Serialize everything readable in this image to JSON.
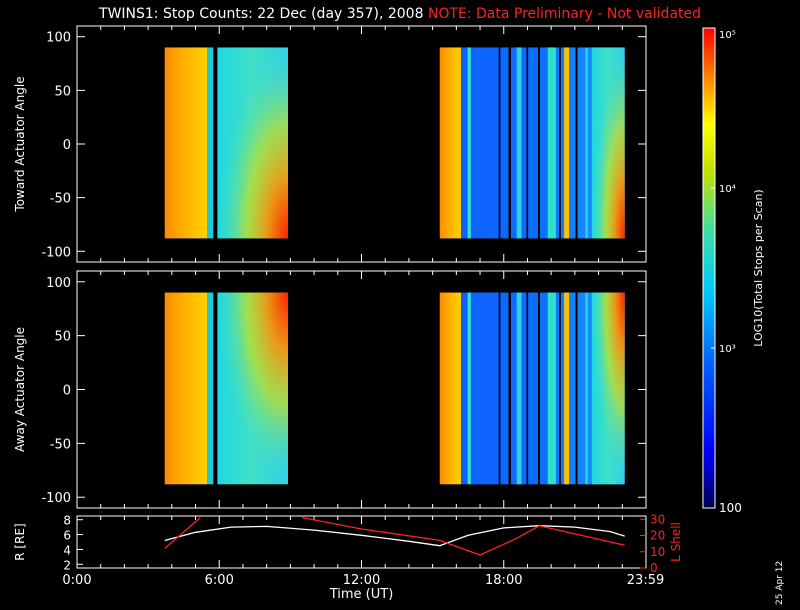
{
  "title": {
    "main": "TWINS1: Stop Counts: 22 Dec (day 357), 2008",
    "note": "NOTE: Data Preliminary - Not validated"
  },
  "footer": {
    "stamp": "25 Apr 12"
  },
  "colors": {
    "note": "#ff2020",
    "frame": "#ffffff",
    "background": "#000000"
  },
  "chart_data": [
    {
      "type": "heatmap",
      "name": "toward",
      "ylabel": "Toward Actuator Angle",
      "ylim": [
        -110,
        110
      ],
      "yticks": [
        100,
        50,
        0,
        -50,
        -100
      ],
      "xlim": [
        0,
        24
      ],
      "angle_range": [
        -88,
        90
      ],
      "data_blocks": [
        {
          "x": [
            3.7,
            8.9
          ],
          "pattern": "orange-cyan",
          "gap_at": 5.5
        },
        {
          "x": [
            15.3,
            16.2
          ],
          "pattern": "orange"
        },
        {
          "x": [
            16.2,
            23.1
          ],
          "pattern": "blue-cyan"
        }
      ]
    },
    {
      "type": "heatmap",
      "name": "away",
      "ylabel": "Away Actuator Angle",
      "ylim": [
        -110,
        110
      ],
      "yticks": [
        100,
        50,
        0,
        -50,
        -100
      ],
      "xlim": [
        0,
        24
      ],
      "angle_range": [
        -88,
        90
      ],
      "data_blocks": [
        {
          "x": [
            3.7,
            8.9
          ],
          "pattern": "orange-cyan",
          "gap_at": 5.5
        },
        {
          "x": [
            15.3,
            16.2
          ],
          "pattern": "orange"
        },
        {
          "x": [
            16.2,
            23.1
          ],
          "pattern": "blue-cyan"
        }
      ]
    },
    {
      "type": "line",
      "name": "orbit",
      "ylabel_left": "R [RE]",
      "ylabel_right": "L Shell",
      "xlabel": "Time (UT)",
      "xlim": [
        0,
        24
      ],
      "xticks": [
        0,
        6,
        12,
        18,
        23.98
      ],
      "xtick_labels": [
        "0:00",
        "6:00",
        "12:00",
        "18:00",
        "23:59"
      ],
      "ylim_left": [
        1.5,
        8.5
      ],
      "yticks_left": [
        2,
        4,
        6,
        8
      ],
      "ylim_right": [
        0,
        32
      ],
      "yticks_right": [
        0,
        10,
        20,
        30
      ],
      "series": [
        {
          "axis": "left",
          "color": "#ffffff",
          "x": [
            3.7,
            5.0,
            6.5,
            8.0,
            10.0,
            12.0,
            14.0,
            15.3,
            16.5,
            18.0,
            19.5,
            21.0,
            22.5,
            23.1
          ],
          "y": [
            5.2,
            6.3,
            7.0,
            7.1,
            6.6,
            5.9,
            5.1,
            4.5,
            5.9,
            6.9,
            7.2,
            7.0,
            6.4,
            5.8
          ]
        },
        {
          "axis": "right",
          "color": "#ff2020",
          "segments": [
            {
              "x": [
                3.7,
                5.2
              ],
              "y": [
                12,
                31
              ]
            },
            {
              "x": [
                9.5,
                12.0,
                15.3,
                17.0,
                18.5,
                19.5,
                21.0,
                23.1
              ],
              "y": [
                31,
                24,
                17,
                8,
                18,
                26,
                21,
                14
              ]
            }
          ]
        }
      ]
    },
    {
      "type": "colorbar",
      "label": "LOG10(Total Stops per Scan)",
      "ticks": [
        100,
        1000,
        10000,
        100000
      ],
      "tick_labels": [
        "100",
        "10³",
        "10⁴",
        "10⁵"
      ],
      "range": [
        100,
        100000
      ],
      "scale": "log"
    }
  ]
}
